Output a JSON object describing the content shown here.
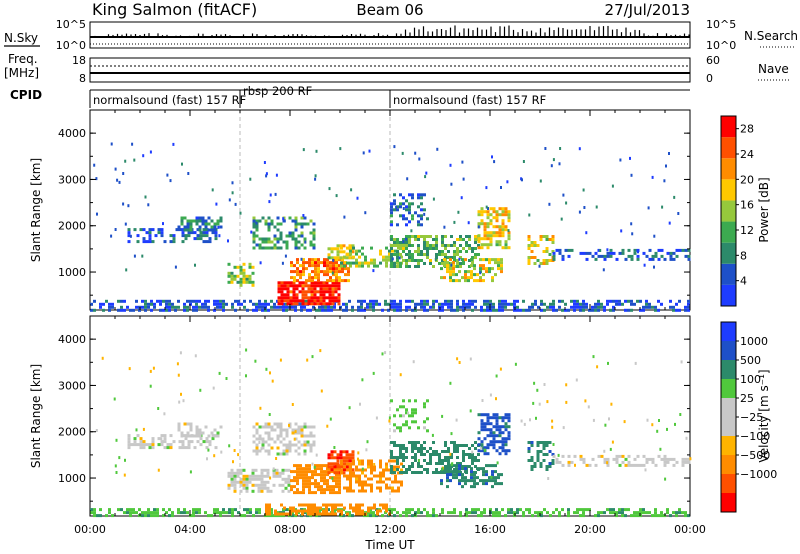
{
  "header": {
    "station": "King Salmon (fitACF)",
    "beam": "Beam 06",
    "date": "27/Jul/2013"
  },
  "sky_panel": {
    "left_label": "N.Sky",
    "right_label": "N.Search",
    "left_top": "10^5",
    "left_bottom": "10^0",
    "right_top": "10^5",
    "right_bottom": "10^0"
  },
  "freq_panel": {
    "left_label_1": "Freq.",
    "left_label_2": "[MHz]",
    "left_top": "18",
    "left_bottom": "8",
    "right_label": "Nave",
    "right_top": "60",
    "right_bottom": "0"
  },
  "cpid": {
    "label": "CPID",
    "segments": [
      {
        "name": "normalsound (fast) 157 RF",
        "start_h": 0,
        "end_h": 6
      },
      {
        "name": "rbsp 200 RF",
        "start_h": 6,
        "end_h": 12
      },
      {
        "name": "normalsound (fast) 157 RF",
        "start_h": 12,
        "end_h": 24
      }
    ]
  },
  "colors": {
    "power": [
      "#1e3cff",
      "#1e50c8",
      "#2c8a6a",
      "#3caa50",
      "#96c83c",
      "#ffc800",
      "#ff8c00",
      "#ff5000",
      "#ff0000"
    ],
    "velocity": [
      "#ff0000",
      "#ff5000",
      "#ff8c00",
      "#ffb400",
      "#c8c8c8",
      "#c8c8c8",
      "#50c83c",
      "#2c8a6a",
      "#1e50c8",
      "#1e3cff"
    ]
  },
  "chart_data": [
    {
      "type": "heatmap",
      "title": "",
      "ylabel": "Slant Range [km]",
      "xlabel": "",
      "xlim": [
        0,
        24
      ],
      "ylim": [
        180,
        4500
      ],
      "yticks": [
        "1000",
        "2000",
        "3000",
        "4000"
      ],
      "colorbar": {
        "label": "Power [dB]",
        "ticks": [
          "4",
          "8",
          "12",
          "16",
          "20",
          "24",
          "28"
        ],
        "range": [
          0,
          30
        ]
      },
      "clusters": [
        {
          "x": [
            0.0,
            24.0
          ],
          "y": [
            200,
            400
          ],
          "value": 4,
          "density": 0.55
        },
        {
          "x": [
            1.5,
            5.0
          ],
          "y": [
            1650,
            1950
          ],
          "value": 5,
          "density": 0.45
        },
        {
          "x": [
            3.5,
            5.2
          ],
          "y": [
            1900,
            2200
          ],
          "value": 8,
          "density": 0.4
        },
        {
          "x": [
            5.5,
            6.5
          ],
          "y": [
            700,
            1200
          ],
          "value": 14,
          "density": 0.55
        },
        {
          "x": [
            6.5,
            9.0
          ],
          "y": [
            1500,
            2200
          ],
          "value": 10,
          "density": 0.45
        },
        {
          "x": [
            7.5,
            10.0
          ],
          "y": [
            300,
            800
          ],
          "value": 28,
          "density": 0.85
        },
        {
          "x": [
            8.0,
            10.3
          ],
          "y": [
            800,
            1300
          ],
          "value": 22,
          "density": 0.75
        },
        {
          "x": [
            9.5,
            10.5
          ],
          "y": [
            1300,
            1600
          ],
          "value": 16,
          "density": 0.6
        },
        {
          "x": [
            10.0,
            12.5
          ],
          "y": [
            1100,
            1550
          ],
          "value": 14,
          "density": 0.5
        },
        {
          "x": [
            12.0,
            15.5
          ],
          "y": [
            1100,
            1800
          ],
          "value": 12,
          "density": 0.55
        },
        {
          "x": [
            14.0,
            16.5
          ],
          "y": [
            800,
            1300
          ],
          "value": 16,
          "density": 0.5
        },
        {
          "x": [
            15.5,
            16.8
          ],
          "y": [
            1500,
            2400
          ],
          "value": 18,
          "density": 0.55
        },
        {
          "x": [
            17.5,
            18.5
          ],
          "y": [
            1200,
            1800
          ],
          "value": 18,
          "density": 0.5
        },
        {
          "x": [
            18.5,
            24.0
          ],
          "y": [
            1250,
            1500
          ],
          "value": 5,
          "density": 0.35
        },
        {
          "x": [
            12.0,
            13.5
          ],
          "y": [
            2000,
            2700
          ],
          "value": 6,
          "density": 0.3
        }
      ]
    },
    {
      "type": "heatmap",
      "title": "",
      "ylabel": "Slant Range [km]",
      "xlabel": "Time UT",
      "xlim": [
        0,
        24
      ],
      "ylim": [
        180,
        4500
      ],
      "xticks": [
        "00:00",
        "04:00",
        "08:00",
        "12:00",
        "16:00",
        "20:00",
        "00:00"
      ],
      "yticks": [
        "1000",
        "2000",
        "3000",
        "4000"
      ],
      "colorbar": {
        "label": "Velocity [m s⁻¹]",
        "ticks": [
          "1000",
          "500",
          "100",
          "25",
          "−25",
          "−100",
          "−500",
          "−1000"
        ],
        "range": [
          -1200,
          1200
        ]
      },
      "clusters": [
        {
          "x": [
            0.0,
            24.0
          ],
          "y": [
            200,
            350
          ],
          "value": 80,
          "density": 0.5
        },
        {
          "x": [
            7.0,
            12.0
          ],
          "y": [
            200,
            450
          ],
          "value": -200,
          "density": 0.6
        },
        {
          "x": [
            1.5,
            5.0
          ],
          "y": [
            1650,
            1950
          ],
          "value": 0,
          "density": 0.45
        },
        {
          "x": [
            3.5,
            5.2
          ],
          "y": [
            1900,
            2200
          ],
          "value": 0,
          "density": 0.4
        },
        {
          "x": [
            5.5,
            8.0
          ],
          "y": [
            700,
            1200
          ],
          "value": 0,
          "density": 0.6
        },
        {
          "x": [
            6.5,
            9.0
          ],
          "y": [
            1500,
            2200
          ],
          "value": 0,
          "density": 0.45
        },
        {
          "x": [
            8.0,
            10.0
          ],
          "y": [
            700,
            1300
          ],
          "value": -300,
          "density": 0.75
        },
        {
          "x": [
            9.5,
            10.5
          ],
          "y": [
            1100,
            1600
          ],
          "value": -900,
          "density": 0.75
        },
        {
          "x": [
            10.0,
            12.5
          ],
          "y": [
            700,
            1400
          ],
          "value": -150,
          "density": 0.55
        },
        {
          "x": [
            12.0,
            15.5
          ],
          "y": [
            1100,
            1800
          ],
          "value": 300,
          "density": 0.5
        },
        {
          "x": [
            14.0,
            16.5
          ],
          "y": [
            800,
            1300
          ],
          "value": 400,
          "density": 0.5
        },
        {
          "x": [
            15.5,
            16.8
          ],
          "y": [
            1500,
            2400
          ],
          "value": 700,
          "density": 0.55
        },
        {
          "x": [
            17.5,
            18.5
          ],
          "y": [
            1200,
            1800
          ],
          "value": 400,
          "density": 0.5
        },
        {
          "x": [
            18.5,
            24.0
          ],
          "y": [
            1250,
            1500
          ],
          "value": 0,
          "density": 0.4
        },
        {
          "x": [
            12.0,
            13.5
          ],
          "y": [
            2000,
            2700
          ],
          "value": 50,
          "density": 0.3
        }
      ]
    }
  ]
}
